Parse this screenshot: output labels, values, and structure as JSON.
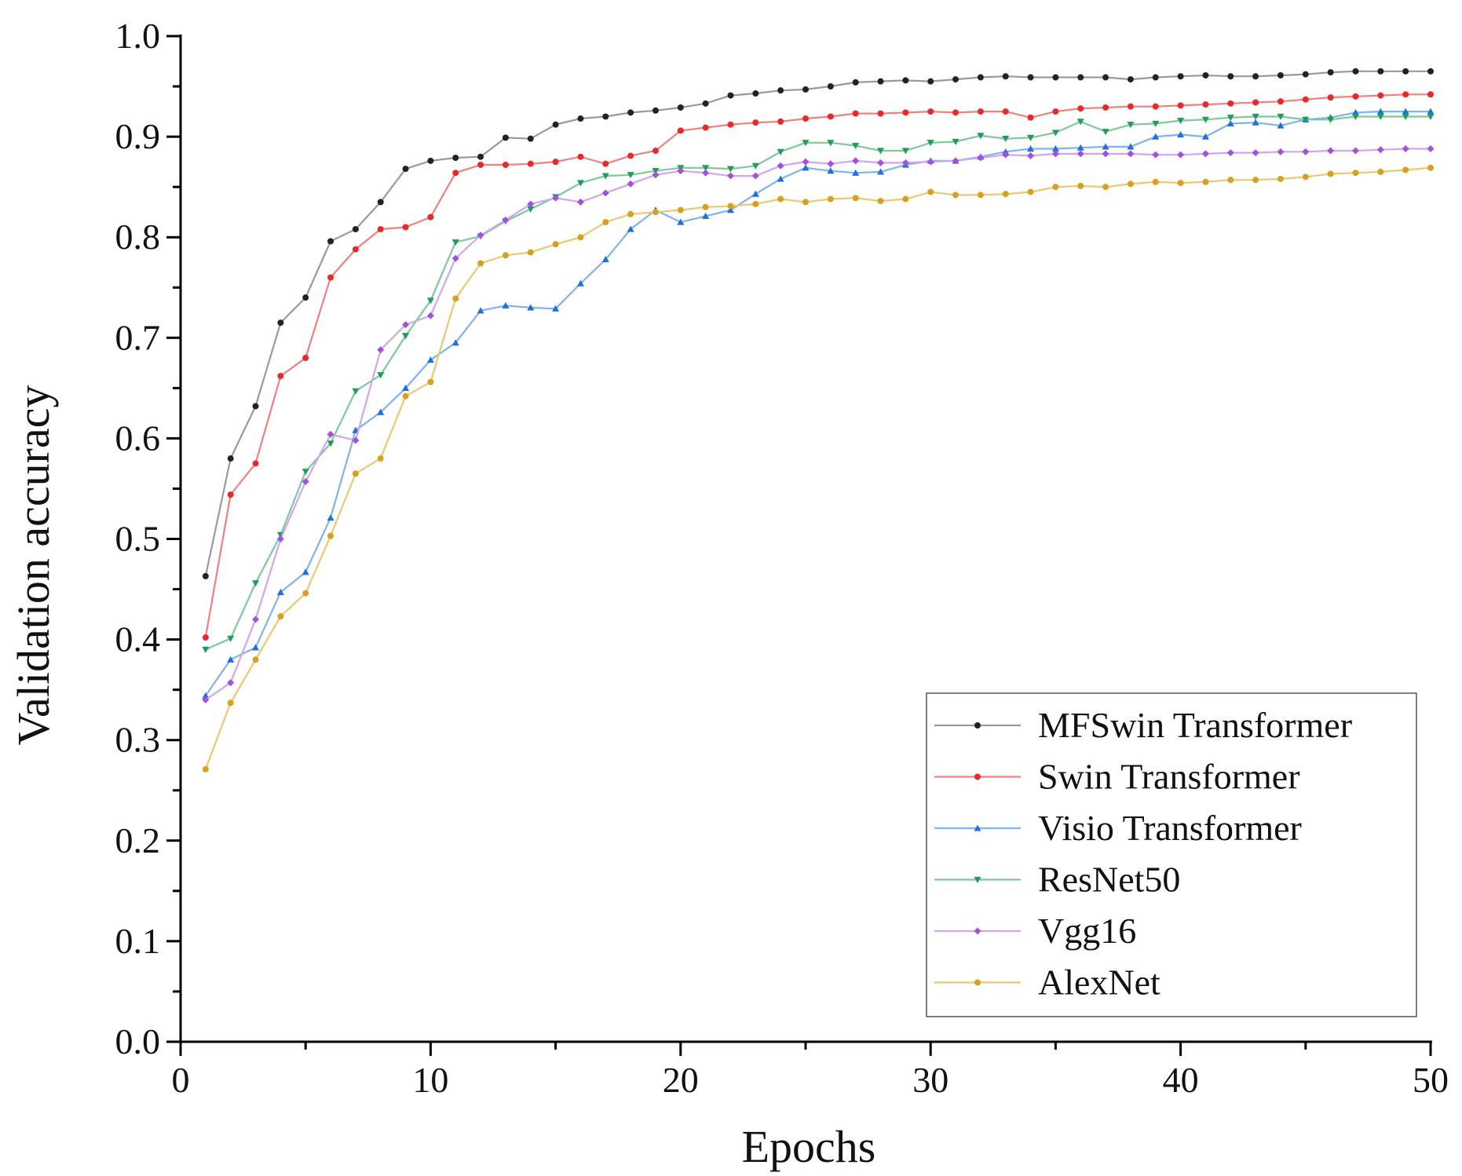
{
  "chart_data": {
    "type": "line",
    "title": "",
    "xlabel": "Epochs",
    "ylabel": "Validation accuracy",
    "xlim": [
      0,
      50
    ],
    "ylim": [
      0.0,
      1.0
    ],
    "xticks": [
      "0",
      "10",
      "20",
      "30",
      "40",
      "50"
    ],
    "yticks": [
      "0.0",
      "0.1",
      "0.2",
      "0.3",
      "0.4",
      "0.5",
      "0.6",
      "0.7",
      "0.8",
      "0.9",
      "1.0"
    ],
    "grid": false,
    "legend_position": "bottom-right",
    "x": [
      1,
      2,
      3,
      4,
      5,
      6,
      7,
      8,
      9,
      10,
      11,
      12,
      13,
      14,
      15,
      16,
      17,
      18,
      19,
      20,
      21,
      22,
      23,
      24,
      25,
      26,
      27,
      28,
      29,
      30,
      31,
      32,
      33,
      34,
      35,
      36,
      37,
      38,
      39,
      40,
      41,
      42,
      43,
      44,
      45,
      46,
      47,
      48,
      49,
      50
    ],
    "series": [
      {
        "name": "MFSwin Transformer",
        "color": "#222222",
        "line_color": "#9a9a9a",
        "marker": "circle",
        "values": [
          0.463,
          0.58,
          0.632,
          0.715,
          0.74,
          0.796,
          0.808,
          0.835,
          0.868,
          0.876,
          0.879,
          0.88,
          0.899,
          0.898,
          0.912,
          0.918,
          0.92,
          0.924,
          0.926,
          0.929,
          0.933,
          0.941,
          0.943,
          0.946,
          0.947,
          0.95,
          0.954,
          0.955,
          0.956,
          0.955,
          0.957,
          0.959,
          0.96,
          0.959,
          0.959,
          0.959,
          0.959,
          0.957,
          0.959,
          0.96,
          0.961,
          0.96,
          0.96,
          0.961,
          0.962,
          0.964,
          0.965,
          0.965,
          0.965,
          0.965
        ]
      },
      {
        "name": "Swin Transformer",
        "color": "#e8282a",
        "line_color": "#f08080",
        "marker": "circle",
        "values": [
          0.402,
          0.544,
          0.575,
          0.662,
          0.68,
          0.76,
          0.788,
          0.808,
          0.81,
          0.82,
          0.864,
          0.872,
          0.872,
          0.873,
          0.875,
          0.88,
          0.873,
          0.881,
          0.886,
          0.906,
          0.909,
          0.912,
          0.914,
          0.915,
          0.918,
          0.92,
          0.923,
          0.923,
          0.924,
          0.925,
          0.924,
          0.925,
          0.925,
          0.919,
          0.925,
          0.928,
          0.929,
          0.93,
          0.93,
          0.931,
          0.932,
          0.933,
          0.934,
          0.935,
          0.937,
          0.939,
          0.94,
          0.941,
          0.942,
          0.942
        ]
      },
      {
        "name": "Visio Transformer",
        "color": "#1f6fe0",
        "line_color": "#7fb2f0",
        "marker": "triangle",
        "values": [
          0.344,
          0.38,
          0.392,
          0.447,
          0.467,
          0.521,
          0.608,
          0.626,
          0.65,
          0.678,
          0.695,
          0.727,
          0.732,
          0.73,
          0.729,
          0.754,
          0.778,
          0.808,
          0.827,
          0.815,
          0.821,
          0.827,
          0.843,
          0.858,
          0.869,
          0.866,
          0.864,
          0.865,
          0.872,
          0.876,
          0.876,
          0.88,
          0.885,
          0.888,
          0.888,
          0.889,
          0.89,
          0.89,
          0.9,
          0.902,
          0.9,
          0.913,
          0.914,
          0.911,
          0.917,
          0.919,
          0.924,
          0.925,
          0.925,
          0.925
        ]
      },
      {
        "name": "ResNet50",
        "color": "#1e9e5a",
        "line_color": "#7cc99a",
        "marker": "triangle-down",
        "values": [
          0.39,
          0.401,
          0.456,
          0.504,
          0.567,
          0.595,
          0.647,
          0.663,
          0.702,
          0.737,
          0.795,
          0.801,
          0.816,
          0.828,
          0.84,
          0.854,
          0.861,
          0.862,
          0.866,
          0.869,
          0.869,
          0.868,
          0.871,
          0.885,
          0.894,
          0.894,
          0.891,
          0.886,
          0.886,
          0.894,
          0.895,
          0.901,
          0.898,
          0.899,
          0.904,
          0.915,
          0.905,
          0.912,
          0.913,
          0.916,
          0.917,
          0.919,
          0.92,
          0.92,
          0.917,
          0.917,
          0.92,
          0.92,
          0.92,
          0.92
        ]
      },
      {
        "name": "Vgg16",
        "color": "#a34fe0",
        "line_color": "#d0a6f2",
        "marker": "diamond",
        "values": [
          0.34,
          0.357,
          0.42,
          0.5,
          0.557,
          0.604,
          0.598,
          0.688,
          0.713,
          0.722,
          0.779,
          0.802,
          0.817,
          0.833,
          0.839,
          0.835,
          0.844,
          0.853,
          0.862,
          0.866,
          0.864,
          0.861,
          0.861,
          0.871,
          0.875,
          0.873,
          0.876,
          0.874,
          0.874,
          0.875,
          0.876,
          0.879,
          0.882,
          0.881,
          0.883,
          0.883,
          0.883,
          0.883,
          0.882,
          0.882,
          0.883,
          0.884,
          0.884,
          0.885,
          0.885,
          0.886,
          0.886,
          0.887,
          0.888,
          0.888
        ]
      },
      {
        "name": "AlexNet",
        "color": "#d9a020",
        "line_color": "#ecc870",
        "marker": "circle",
        "values": [
          0.271,
          0.337,
          0.38,
          0.423,
          0.446,
          0.503,
          0.565,
          0.58,
          0.642,
          0.656,
          0.739,
          0.774,
          0.782,
          0.785,
          0.793,
          0.8,
          0.815,
          0.823,
          0.825,
          0.827,
          0.83,
          0.831,
          0.833,
          0.838,
          0.835,
          0.838,
          0.839,
          0.836,
          0.838,
          0.845,
          0.842,
          0.842,
          0.843,
          0.845,
          0.85,
          0.851,
          0.85,
          0.853,
          0.855,
          0.854,
          0.855,
          0.857,
          0.857,
          0.858,
          0.86,
          0.863,
          0.864,
          0.865,
          0.867,
          0.869
        ]
      }
    ]
  }
}
